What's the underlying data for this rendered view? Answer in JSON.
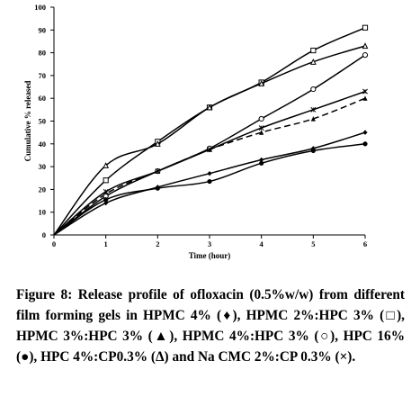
{
  "chart_data": {
    "type": "line",
    "title": "",
    "xlabel": "Time (hour)",
    "ylabel": "Cumulative % released",
    "x": [
      0,
      1,
      2,
      3,
      4,
      5,
      6
    ],
    "xlim": [
      0,
      6
    ],
    "ylim": [
      0,
      100
    ],
    "xticks": [
      "0",
      "1",
      "2",
      "3",
      "4",
      "5",
      "6"
    ],
    "yticks": [
      "0",
      "10",
      "20",
      "30",
      "40",
      "50",
      "60",
      "70",
      "80",
      "90",
      "100"
    ],
    "grid": false,
    "legend": "none",
    "series": [
      {
        "values": [
          0,
          14,
          21,
          27,
          33,
          38,
          45
        ],
        "marker": "diamond",
        "dashed": false
      },
      {
        "values": [
          0,
          24,
          41,
          56,
          67,
          81,
          91
        ],
        "marker": "square",
        "dashed": false
      },
      {
        "values": [
          0,
          18,
          28,
          37.5,
          45,
          51,
          60
        ],
        "marker": "triangle",
        "dashed": true
      },
      {
        "values": [
          0,
          17,
          28,
          38,
          51,
          64,
          79
        ],
        "marker": "circle",
        "dashed": false
      },
      {
        "values": [
          0,
          15.5,
          20.5,
          23.5,
          31.5,
          37,
          40
        ],
        "marker": "dot",
        "dashed": false
      },
      {
        "values": [
          0,
          30.5,
          40,
          56,
          66.5,
          76,
          83
        ],
        "marker": "triangle-open",
        "dashed": false
      },
      {
        "values": [
          0,
          19,
          28,
          37.5,
          47,
          55,
          63
        ],
        "marker": "cross",
        "dashed": false
      }
    ]
  },
  "caption": "Figure 8: Release profile of ofloxacin (0.5%w/w) from different film forming gels in HPMC 4% (♦), HPMC 2%:HPC 3% (□), HPMC 3%:HPC 3% (▲), HPMC 4%:HPC 3% (○), HPC 16% (●), HPC 4%:CP0.3% (Δ) and Na CMC 2%:CP 0.3% (×)."
}
